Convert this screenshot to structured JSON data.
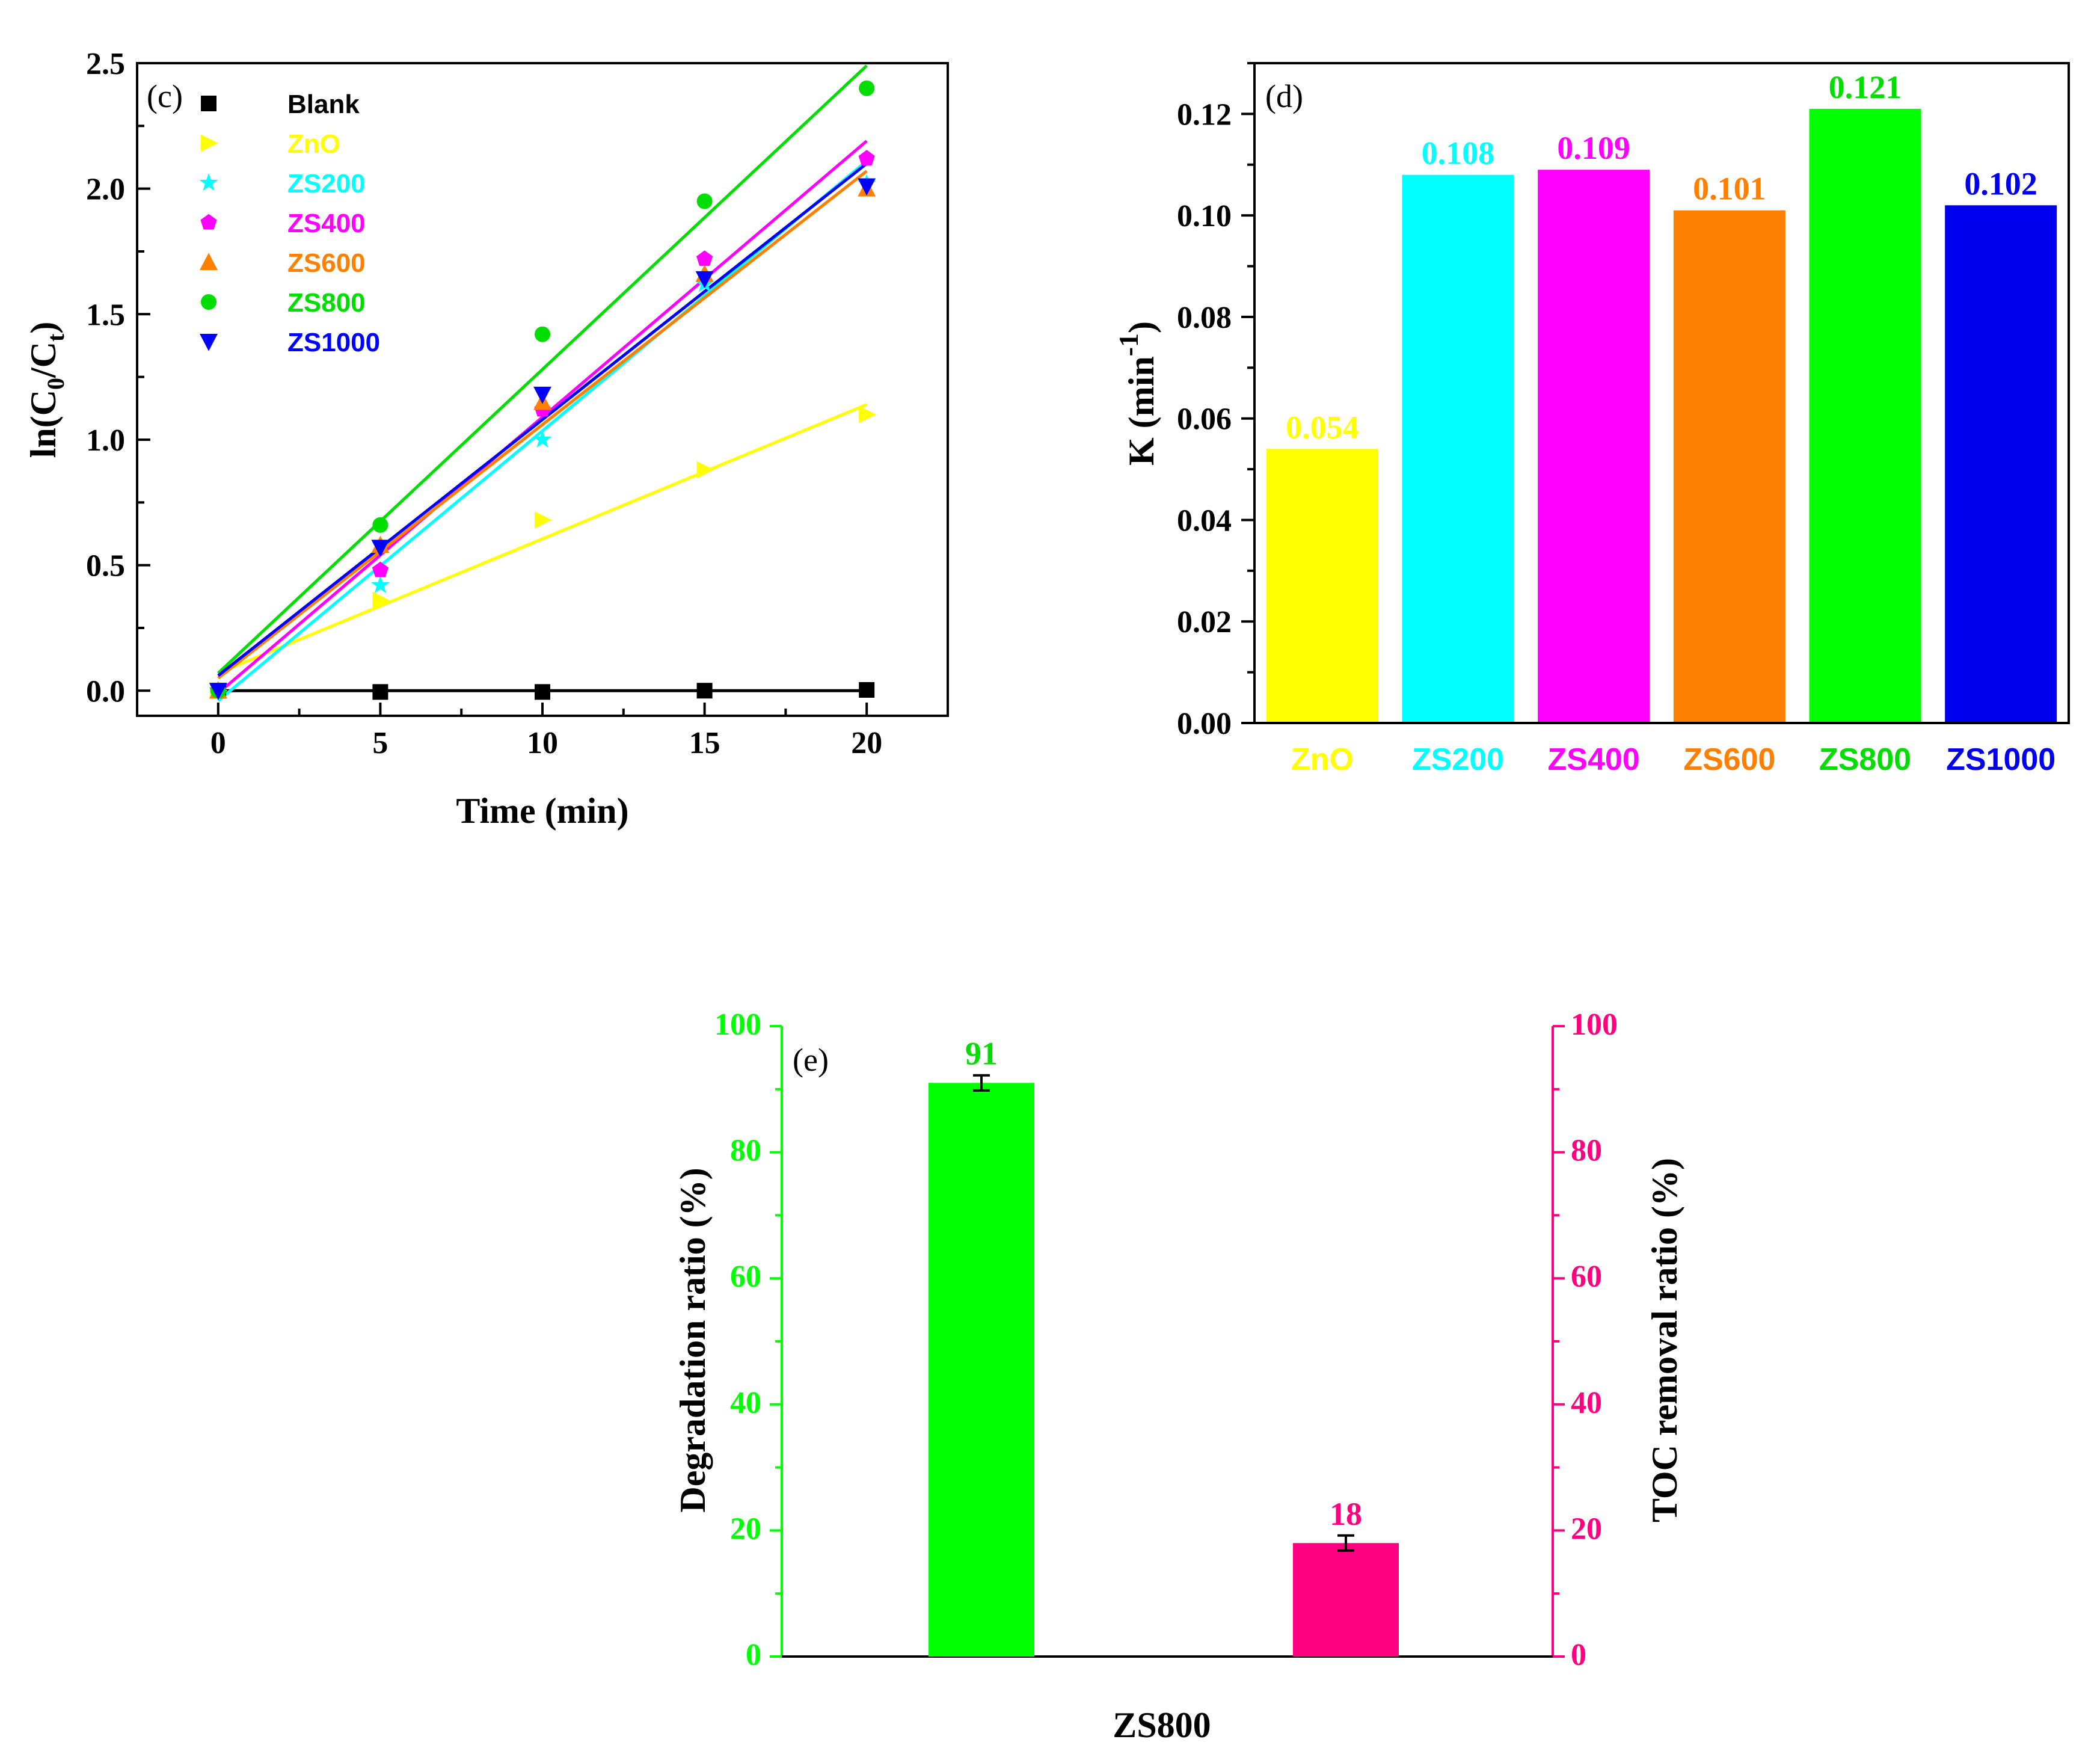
{
  "chart_data": [
    {
      "panel": "(c)",
      "type": "scatter",
      "xlabel": "Time (min)",
      "ylabel": "ln(C0/Ct)",
      "xlim": [
        -2.5,
        22.5
      ],
      "ylim": [
        -0.1,
        2.5
      ],
      "xticks": [
        "0",
        "5",
        "10",
        "15",
        "20"
      ],
      "yticks": [
        "0.0",
        "0.5",
        "1.0",
        "1.5",
        "2.0",
        "2.5"
      ],
      "x": [
        0,
        5,
        10,
        15,
        20
      ],
      "series": [
        {
          "name": "Blank",
          "color": "#000000",
          "marker": "square",
          "values": [
            0.0,
            -0.005,
            -0.005,
            0.0,
            0.003
          ],
          "fit": [
            0.0,
            0.0
          ]
        },
        {
          "name": "ZnO",
          "color": "#ffff00",
          "marker": "triangle-right",
          "values": [
            0.0,
            0.36,
            0.68,
            0.88,
            1.1
          ],
          "fit": [
            0.07,
            0.0535
          ]
        },
        {
          "name": "ZS200",
          "color": "#00ffff",
          "marker": "star",
          "values": [
            0.0,
            0.42,
            1.0,
            1.62,
            2.02
          ],
          "fit": [
            -0.04,
            0.1075
          ]
        },
        {
          "name": "ZS400",
          "color": "#ff00ff",
          "marker": "pentagon",
          "values": [
            0.0,
            0.48,
            1.12,
            1.72,
            2.12
          ],
          "fit": [
            -0.01,
            0.11
          ]
        },
        {
          "name": "ZS600",
          "color": "#ff7f00",
          "marker": "triangle-up",
          "values": [
            0.0,
            0.58,
            1.15,
            1.66,
            2.0
          ],
          "fit": [
            0.05,
            0.101
          ]
        },
        {
          "name": "ZS800",
          "color": "#00dd00",
          "marker": "circle",
          "values": [
            0.0,
            0.66,
            1.42,
            1.95,
            2.4
          ],
          "fit": [
            0.07,
            0.121
          ]
        },
        {
          "name": "ZS1000",
          "color": "#0000ff",
          "marker": "triangle-down",
          "values": [
            0.0,
            0.57,
            1.18,
            1.64,
            2.01
          ],
          "fit": [
            0.06,
            0.102
          ]
        }
      ]
    },
    {
      "panel": "(d)",
      "type": "bar",
      "ylabel": "K (min",
      "ylabel_sup": "-1",
      "ylabel_end": ")",
      "ylim": [
        0,
        0.13
      ],
      "yticks": [
        "0.00",
        "0.02",
        "0.04",
        "0.06",
        "0.08",
        "0.10",
        "0.12"
      ],
      "categories": [
        "ZnO",
        "ZS200",
        "ZS400",
        "ZS600",
        "ZS800",
        "ZS1000"
      ],
      "values": [
        0.054,
        0.108,
        0.109,
        0.101,
        0.121,
        0.102
      ],
      "value_labels": [
        "0.054",
        "0.108",
        "0.109",
        "0.101",
        "0.121",
        "0.102"
      ],
      "colors": [
        "#ffff00",
        "#00ffff",
        "#ff00ff",
        "#ff8000",
        "#00ff00",
        "#0000ee"
      ],
      "label_colors": [
        "#ffff00",
        "#00ffff",
        "#ff00ff",
        "#ff8000",
        "#00dd00",
        "#0000ee"
      ]
    },
    {
      "panel": "(e)",
      "type": "bar",
      "xlabel": "ZS800",
      "ylabel": "Degradation ratio (%)",
      "ylabel_right": "TOC removal ratio (%)",
      "ylim": [
        0,
        100
      ],
      "yticks": [
        "0",
        "20",
        "40",
        "60",
        "80",
        "100"
      ],
      "categories": [
        "Degradation ratio",
        "TOC removal ratio"
      ],
      "values": [
        91,
        18
      ],
      "errors": [
        1.2,
        1.2
      ],
      "value_labels": [
        "91",
        "18"
      ],
      "colors": [
        "#00ff00",
        "#ff0080"
      ],
      "axis_colors": {
        "left": "#00ff00",
        "right": "#ff0080"
      }
    }
  ]
}
